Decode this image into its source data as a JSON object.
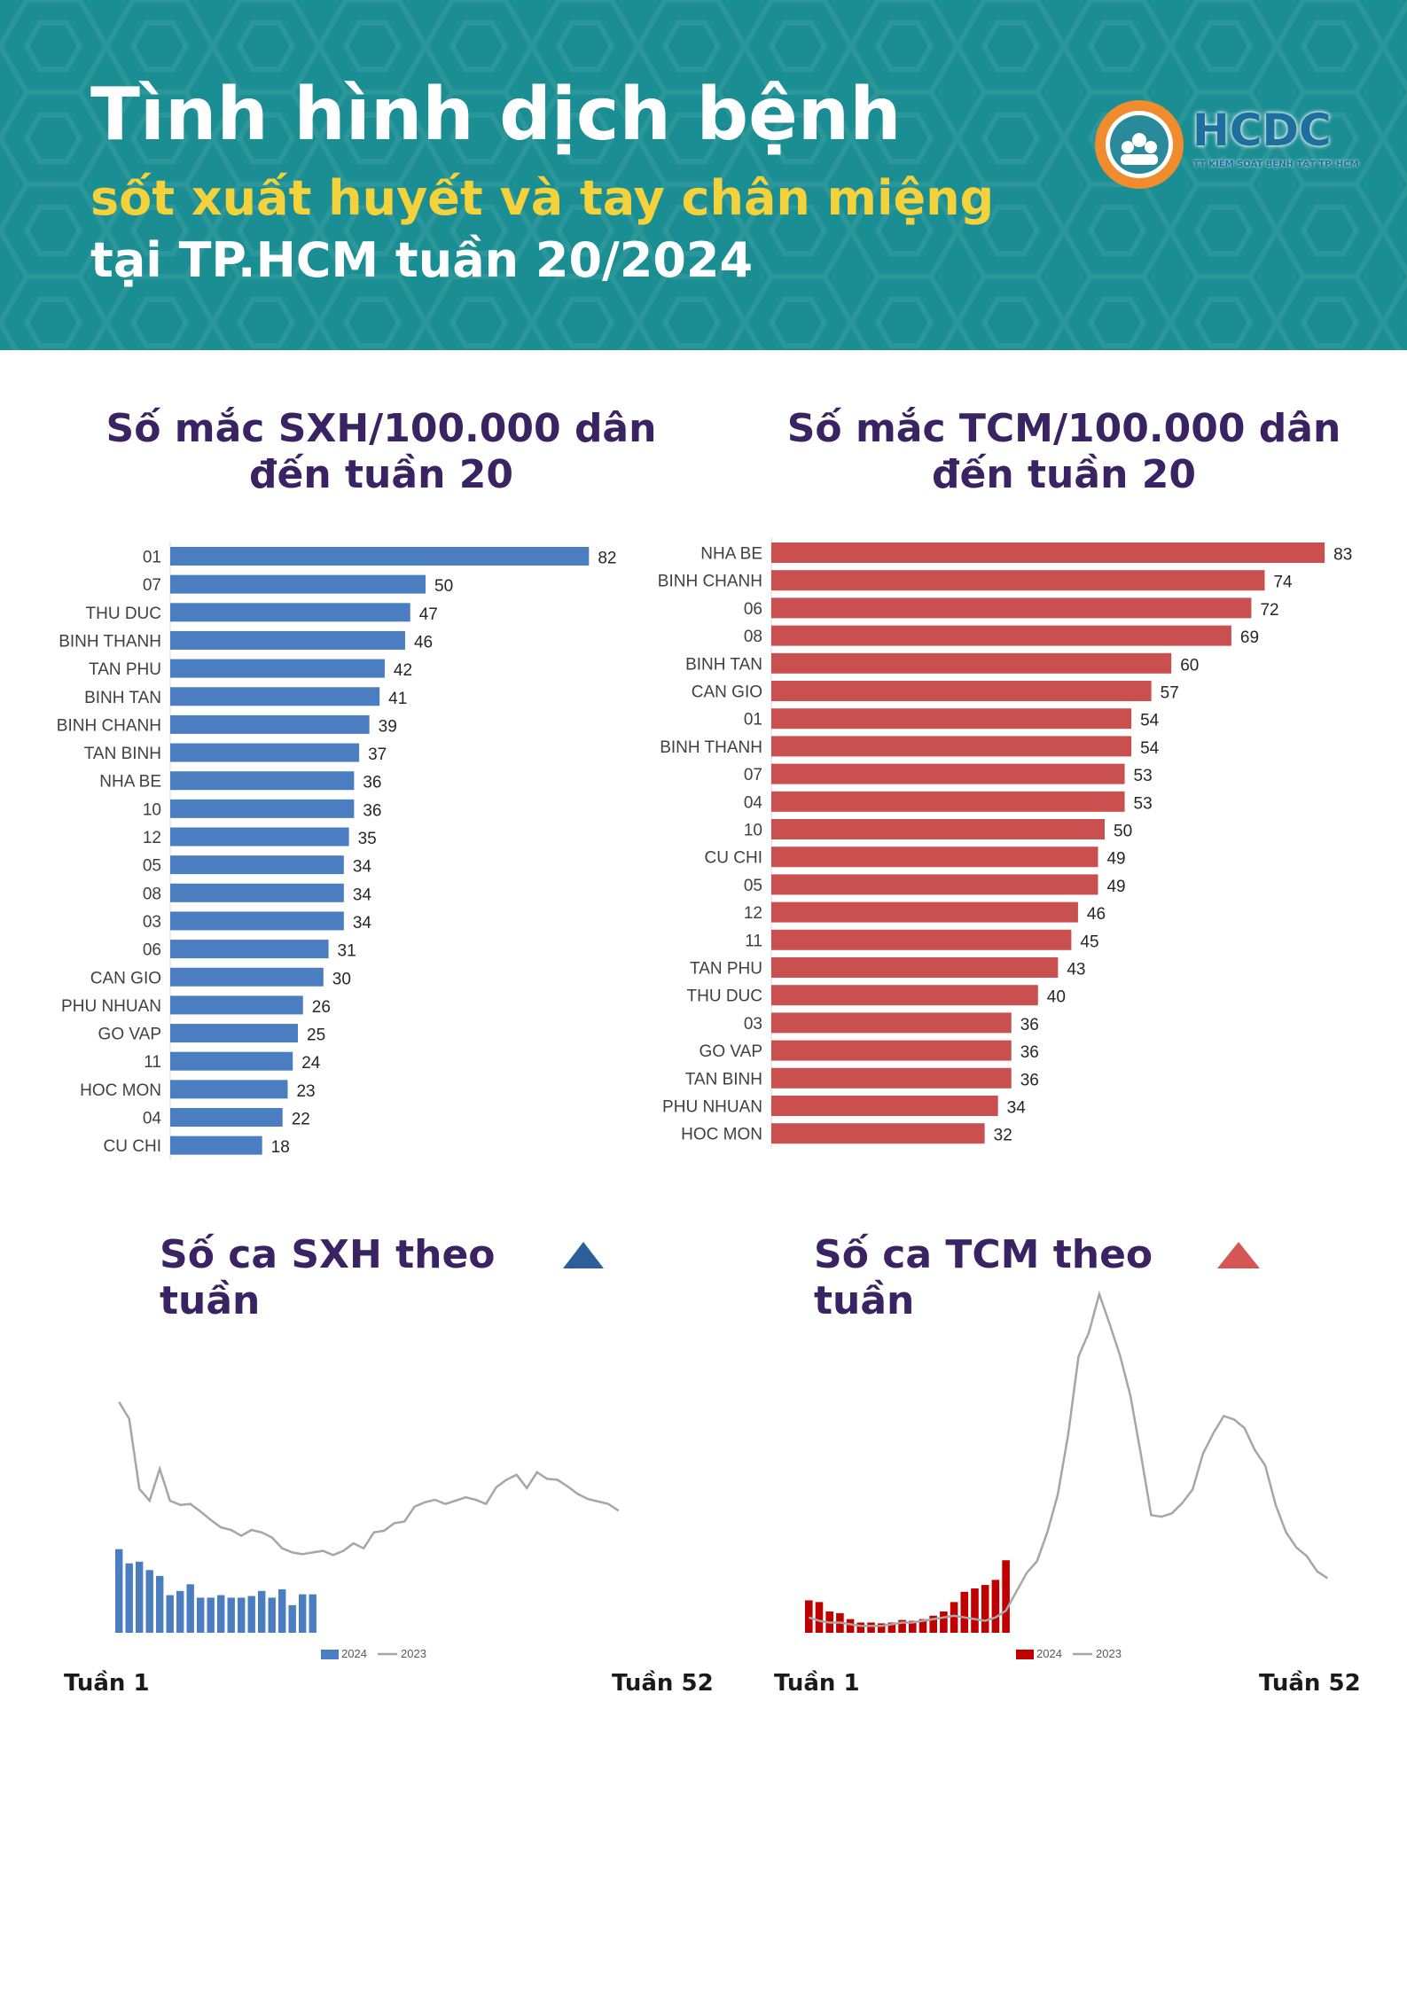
{
  "header": {
    "title": "Tình hình dịch bệnh",
    "subtitle": "sốt xuất huyết và tay chân miệng",
    "subtitle2": "tại TP.HCM tuần 20/2024",
    "logo_text": "HCDC",
    "logo_sub": "TT KIỂM SOÁT BỆNH TẬT TP. HCM"
  },
  "sections": {
    "sxh_rate_title_1": "Số mắc SXH/100.000 dân",
    "sxh_rate_title_2": "đến tuần 20",
    "tcm_rate_title_1": "Số mắc TCM/100.000 dân",
    "tcm_rate_title_2": "đến tuần 20",
    "sxh_weekly_title": "Số ca SXH theo tuần",
    "tcm_weekly_title": "Số ca TCM theo tuần",
    "week_start": "Tuần 1",
    "week_end": "Tuần 52"
  },
  "colors": {
    "header_bg": "#1a8e93",
    "title_yellow": "#f4d23c",
    "section_title": "#3a2362",
    "sxh_bar": "#4a7ec0",
    "tcm_bar": "#c9504f",
    "tcm_bar_2024": "#c00000",
    "line_2023": "#a6a6a6",
    "tri_blue": "#2e5e9a",
    "tri_red": "#d65555"
  },
  "chart_data": [
    {
      "id": "sxh_rate",
      "type": "bar",
      "orientation": "horizontal",
      "categories": [
        "01",
        "07",
        "THU DUC",
        "BINH THANH",
        "TAN PHU",
        "BINH TAN",
        "BINH CHANH",
        "TAN BINH",
        "NHA BE",
        "10",
        "12",
        "05",
        "08",
        "03",
        "06",
        "CAN GIO",
        "PHU NHUAN",
        "GO VAP",
        "11",
        "HOC MON",
        "04",
        "CU CHI"
      ],
      "values": [
        82,
        50,
        47,
        46,
        42,
        41,
        39,
        37,
        36,
        36,
        35,
        34,
        34,
        34,
        31,
        30,
        26,
        25,
        24,
        23,
        22,
        18
      ],
      "title": "Số mắc SXH/100.000 dân đến tuần 20"
    },
    {
      "id": "tcm_rate",
      "type": "bar",
      "orientation": "horizontal",
      "categories": [
        "NHA BE",
        "BINH CHANH",
        "06",
        "08",
        "BINH TAN",
        "CAN GIO",
        "01",
        "BINH THANH",
        "07",
        "04",
        "10",
        "CU CHI",
        "05",
        "12",
        "11",
        "TAN PHU",
        "THU DUC",
        "03",
        "GO VAP",
        "TAN BINH",
        "PHU NHUAN",
        "HOC MON"
      ],
      "values": [
        83,
        74,
        72,
        69,
        60,
        57,
        54,
        54,
        53,
        53,
        50,
        49,
        49,
        46,
        45,
        43,
        40,
        36,
        36,
        36,
        34,
        32
      ],
      "title": "Số mắc TCM/100.000 dân đến tuần 20"
    },
    {
      "id": "sxh_weekly",
      "type": "bar",
      "title": "Số ca SXH theo tuần",
      "x_start": "Tuần 1",
      "x_end": "Tuần 52",
      "legend": "bottom",
      "ylim": [
        0,
        300
      ],
      "series": [
        {
          "name": "2024",
          "type": "bar",
          "values": [
            100,
            83,
            85,
            75,
            68,
            45,
            50,
            58,
            42,
            42,
            45,
            42,
            42,
            44,
            50,
            42,
            52,
            33,
            46,
            46
          ]
        },
        {
          "name": "2023",
          "type": "line",
          "values": [
            276,
            256,
            172,
            158,
            196,
            158,
            153,
            154,
            145,
            135,
            126,
            123,
            116,
            123,
            120,
            114,
            101,
            96,
            94,
            96,
            98,
            93,
            98,
            107,
            101,
            120,
            122,
            131,
            133,
            151,
            156,
            159,
            154,
            158,
            162,
            159,
            154,
            174,
            183,
            189,
            173,
            192,
            184,
            183,
            175,
            166,
            160,
            157,
            154,
            146
          ]
        }
      ]
    },
    {
      "id": "tcm_weekly",
      "type": "bar",
      "title": "Số ca TCM theo tuần",
      "x_start": "Tuần 1",
      "x_end": "Tuần 52",
      "legend": "bottom",
      "ylim": [
        0,
        400
      ],
      "series": [
        {
          "name": "2024",
          "type": "bar",
          "values": [
            38,
            36,
            25,
            23,
            16,
            12,
            12,
            11,
            12,
            15,
            14,
            16,
            20,
            25,
            36,
            48,
            52,
            56,
            62,
            85
          ]
        },
        {
          "name": "2023",
          "type": "line",
          "values": [
            18,
            14,
            12,
            12,
            10,
            8,
            8,
            8,
            10,
            12,
            12,
            14,
            16,
            18,
            20,
            18,
            16,
            14,
            18,
            26,
            48,
            70,
            84,
            118,
            162,
            232,
            324,
            352,
            397,
            362,
            325,
            278,
            210,
            138,
            136,
            140,
            152,
            168,
            210,
            234,
            254,
            250,
            240,
            214,
            196,
            150,
            118,
            100,
            90,
            72,
            64
          ]
        }
      ]
    }
  ]
}
